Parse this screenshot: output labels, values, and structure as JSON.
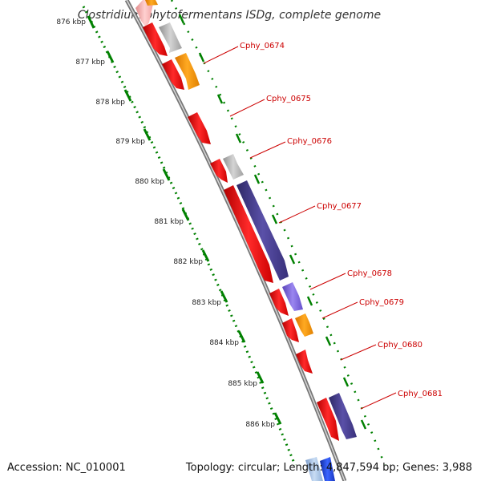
{
  "map": {
    "title": "Clostridium phytofermentans ISDg, complete genome",
    "accession_text": "Accession: NC_010001",
    "summary_text": "Topology: circular; Length: 4,847,594 bp; Genes: 3,988"
  },
  "colors": {
    "red": "#ff0000",
    "grey": "#bbbbbb",
    "orange": "#ff9900",
    "navy": "#4a4090",
    "purple": "#7b62d9",
    "blue": "#1a3fd9",
    "light_blue": "#a8c4e6",
    "pink": "#ffb0b0",
    "ruler": "#008000",
    "backbone": "#888888",
    "label": "#cc0000"
  },
  "ruler": {
    "labels": [
      "876 kbp",
      "877 kbp",
      "878 kbp",
      "879 kbp",
      "880 kbp",
      "881 kbp",
      "882 kbp",
      "883 kbp",
      "884 kbp",
      "885 kbp",
      "886 kbp"
    ]
  },
  "genes": [
    {
      "name": "Cphy_0674"
    },
    {
      "name": "Cphy_0675"
    },
    {
      "name": "Cphy_0676"
    },
    {
      "name": "Cphy_0677"
    },
    {
      "name": "Cphy_0678"
    },
    {
      "name": "Cphy_0679"
    },
    {
      "name": "Cphy_0680"
    },
    {
      "name": "Cphy_0681"
    }
  ]
}
